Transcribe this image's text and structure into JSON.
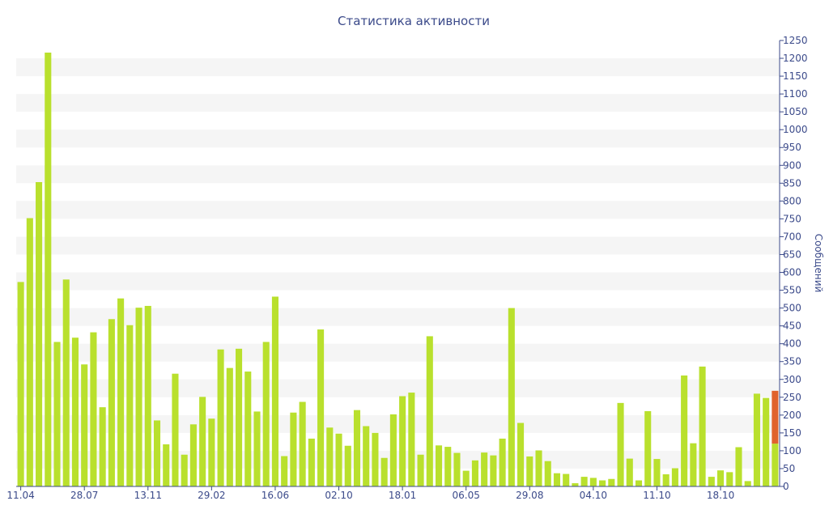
{
  "chart_data": {
    "type": "bar",
    "title": "Статистика активности",
    "ylabel": "Сообщений",
    "xlabel": "",
    "ylim": [
      0,
      1250
    ],
    "y_ticks": [
      0,
      50,
      100,
      150,
      200,
      250,
      300,
      350,
      400,
      450,
      500,
      550,
      600,
      650,
      700,
      750,
      800,
      850,
      900,
      950,
      1000,
      1050,
      1100,
      1150,
      1200,
      1250
    ],
    "x_tick_labels": [
      {
        "label": "11.04",
        "index": 0
      },
      {
        "label": "28.07",
        "index": 7
      },
      {
        "label": "13.11",
        "index": 14
      },
      {
        "label": "29.02",
        "index": 21
      },
      {
        "label": "16.06",
        "index": 28
      },
      {
        "label": "02.10",
        "index": 35
      },
      {
        "label": "18.01",
        "index": 42
      },
      {
        "label": "06.05",
        "index": 49
      },
      {
        "label": "29.08",
        "index": 56
      },
      {
        "label": "04.10",
        "index": 63
      },
      {
        "label": "11.10",
        "index": 70
      },
      {
        "label": "18.10",
        "index": 77
      }
    ],
    "grid": "horizontal alternating bands",
    "colors": {
      "bar": "#b9e02d",
      "highlight": "#e0622d",
      "text": "#3b4a8a",
      "band": "#f5f5f5"
    },
    "series": [
      {
        "values": [
          573,
          752,
          853,
          1216,
          405,
          580,
          417,
          342,
          432,
          222,
          469,
          527,
          452,
          501,
          506,
          185,
          118,
          316,
          89,
          174,
          251,
          190,
          384,
          332,
          386,
          322,
          210,
          405,
          532,
          85,
          207,
          237,
          134,
          440,
          165,
          148,
          114,
          214,
          169,
          150,
          80,
          202,
          253,
          263,
          89,
          421,
          115,
          111,
          94,
          44,
          73,
          95,
          87,
          134,
          500,
          178,
          84,
          101,
          71,
          37,
          35,
          9,
          27,
          24,
          17,
          21,
          234,
          78,
          17,
          211,
          77,
          34,
          51,
          311,
          121,
          336,
          27,
          45,
          40,
          110,
          15,
          260,
          248,
          120
        ],
        "highlight_tail": [
          0,
          0,
          0,
          0,
          0,
          0,
          0,
          0,
          0,
          0,
          0,
          0,
          0,
          0,
          0,
          0,
          0,
          0,
          0,
          0,
          0,
          0,
          0,
          0,
          0,
          0,
          0,
          0,
          0,
          0,
          0,
          0,
          0,
          0,
          0,
          0,
          0,
          0,
          0,
          0,
          0,
          0,
          0,
          0,
          0,
          0,
          0,
          0,
          0,
          0,
          0,
          0,
          0,
          0,
          0,
          0,
          0,
          0,
          0,
          0,
          0,
          0,
          0,
          0,
          0,
          0,
          0,
          0,
          0,
          0,
          0,
          0,
          0,
          0,
          0,
          0,
          0,
          0,
          0,
          0,
          0,
          0,
          0,
          148
        ]
      }
    ]
  }
}
